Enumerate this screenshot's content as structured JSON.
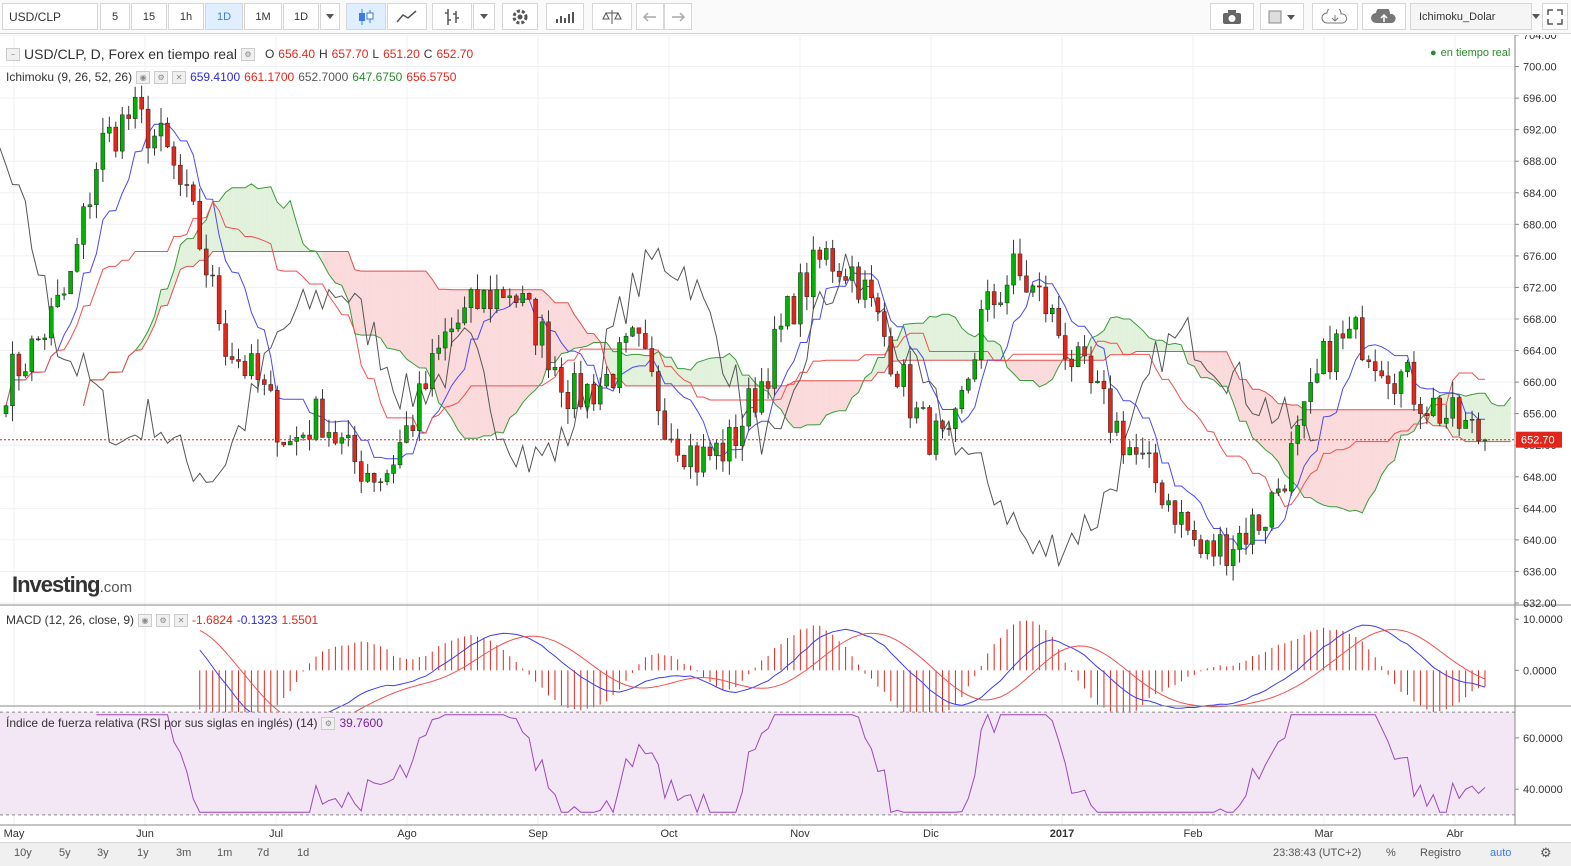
{
  "toolbar": {
    "symbol": "USD/CLP",
    "intervals": [
      "5",
      "15",
      "1h",
      "1D",
      "1M",
      "1D"
    ],
    "active_interval": "1D",
    "study": "Ichimoku_Dolar"
  },
  "legend": {
    "title": "USD/CLP, D, Forex en tiempo real",
    "o_label": "O",
    "o": "656.40",
    "h_label": "H",
    "h": "657.70",
    "l_label": "L",
    "l": "651.20",
    "c_label": "C",
    "c": "652.70",
    "live": "en tiempo real"
  },
  "ichimoku": {
    "label": "Ichimoku (9, 26, 52, 26)",
    "v1": "659.4100",
    "v2": "661.1700",
    "v3": "652.7000",
    "v4": "647.6750",
    "v5": "656.5750"
  },
  "macd": {
    "label": "MACD (12, 26, close, 9)",
    "v1": "-1.6824",
    "v2": "-0.1323",
    "v3": "1.5501"
  },
  "rsi": {
    "label": "Índice de fuerza relativa (RSI por sus siglas en inglés) (14)",
    "v1": "39.7600"
  },
  "logo": {
    "main": "Investing",
    "suffix": ".com"
  },
  "price_tag": "652.70",
  "colors": {
    "up": "#00b300",
    "down": "#e0271c",
    "tenkan": "#4a4af0",
    "kijun": "#f05050",
    "lagging": "#555555",
    "macd": "#3c3cf0",
    "signal": "#f05050",
    "rsi": "#9b4ab9",
    "rsi_band": "#f3e6f5"
  },
  "ranges": [
    "10y",
    "5y",
    "3y",
    "1y",
    "3m",
    "1m",
    "7d",
    "1d"
  ],
  "footer": {
    "time": "23:38:43 (UTC+2)",
    "pct": "%",
    "registro": "Registro",
    "auto": "auto"
  },
  "chart_data": [
    {
      "type": "candlestick",
      "title": "USD/CLP, D, Forex en tiempo real",
      "x_ticks": [
        "May",
        "Jun",
        "Jul",
        "Ago",
        "Sep",
        "Oct",
        "Nov",
        "Dic",
        "2017",
        "Feb",
        "Mar",
        "Abr"
      ],
      "y_ticks": [
        "704.00",
        "700.00",
        "696.00",
        "692.00",
        "688.00",
        "684.00",
        "680.00",
        "676.00",
        "672.00",
        "668.00",
        "664.00",
        "660.00",
        "656.00",
        "652.00",
        "648.00",
        "644.00",
        "640.00",
        "636.00",
        "632.00"
      ],
      "ylim": [
        632,
        704
      ],
      "last_close": 652.7,
      "monthly_close_path": [
        660,
        665,
        672,
        690,
        694,
        690,
        680,
        665,
        660,
        652,
        656,
        650,
        648,
        656,
        666,
        670,
        672,
        666,
        658,
        660,
        665,
        655,
        650,
        652,
        660,
        670,
        676,
        674,
        665,
        655,
        651,
        668,
        674,
        670,
        662,
        656,
        650,
        645,
        638,
        640,
        643,
        652,
        664,
        666,
        662,
        658,
        655,
        652.7
      ],
      "series": [
        {
          "name": "Ichimoku (9, 26, 52, 26)",
          "values": [
            659.41,
            661.17,
            652.7,
            647.675,
            656.575
          ]
        }
      ]
    },
    {
      "type": "line",
      "title": "MACD (12, 26, close, 9)",
      "y_ticks": [
        "10.0000",
        "0.0000"
      ],
      "ylim": [
        -6,
        12
      ],
      "series": [
        {
          "name": "MACD (12, 26, close, 9)",
          "values": [
            -1.6824,
            -0.1323,
            1.5501
          ]
        }
      ]
    },
    {
      "type": "line",
      "title": "Índice de fuerza relativa (RSI por sus siglas en inglés) (14)",
      "y_ticks": [
        "60.0000",
        "40.0000"
      ],
      "ylim": [
        28,
        72
      ],
      "series": [
        {
          "name": "Índice de fuerza relativa (RSI por sus siglas en inglés) (14)",
          "values": [
            39.76
          ]
        }
      ]
    }
  ]
}
